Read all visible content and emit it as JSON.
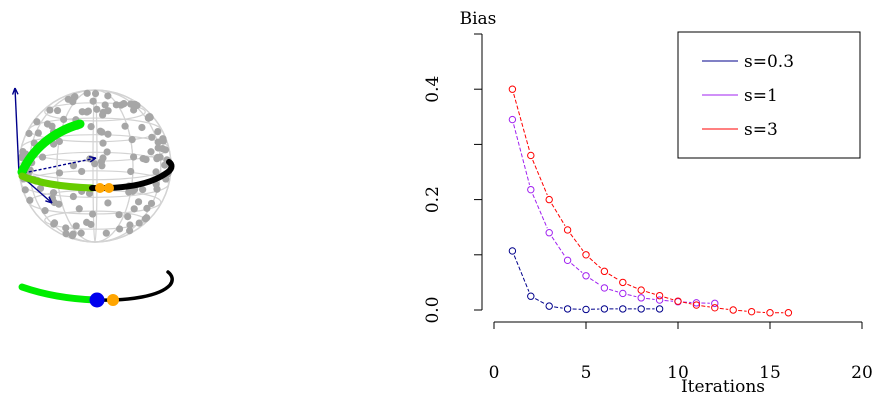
{
  "colors": {
    "sphere_wire": "#d3d3d3",
    "sphere_points": "#a6a6a6",
    "arrows": "#00008b",
    "path_green": "#00ee00",
    "path_olive": "#66cc00",
    "path_black": "#000000",
    "marker_orange": "#ffa500",
    "marker_blue": "#0000ee"
  },
  "chart_data": {
    "type": "line",
    "title": "",
    "xlabel": "Iterations",
    "ylabel": "Bias",
    "xlim": [
      0,
      20
    ],
    "ylim": [
      0,
      0.5
    ],
    "xticks": [
      0,
      5,
      10,
      15,
      20
    ],
    "yticks": [
      0.0,
      0.2,
      0.4
    ],
    "xtick_labels": [
      "0",
      "5",
      "10",
      "15",
      "20"
    ],
    "ytick_labels": [
      "0.0",
      "0.2",
      "0.4"
    ],
    "grid": false,
    "legend_position": "top-right",
    "series": [
      {
        "name": "s=0.3",
        "color": "#00008b",
        "line_style": "dashed",
        "x": [
          1,
          2,
          3,
          4,
          5,
          6,
          7,
          8,
          9
        ],
        "y": [
          0.107,
          0.025,
          0.007,
          0.002,
          0.001,
          0.002,
          0.002,
          0.002,
          0.002
        ]
      },
      {
        "name": "s=1",
        "color": "#a020f0",
        "line_style": "dashed",
        "x": [
          1,
          2,
          3,
          4,
          5,
          6,
          7,
          8,
          9,
          10,
          11,
          12
        ],
        "y": [
          0.345,
          0.218,
          0.14,
          0.09,
          0.062,
          0.04,
          0.03,
          0.022,
          0.018,
          0.015,
          0.013,
          0.012
        ]
      },
      {
        "name": "s=3",
        "color": "#ff0000",
        "line_style": "dashed",
        "x": [
          1,
          2,
          3,
          4,
          5,
          6,
          7,
          8,
          9,
          10,
          11,
          12,
          13,
          14,
          15,
          16
        ],
        "y": [
          0.4,
          0.28,
          0.2,
          0.145,
          0.1,
          0.07,
          0.05,
          0.036,
          0.026,
          0.016,
          0.009,
          0.004,
          0.0,
          -0.003,
          -0.005,
          -0.005
        ]
      }
    ]
  }
}
